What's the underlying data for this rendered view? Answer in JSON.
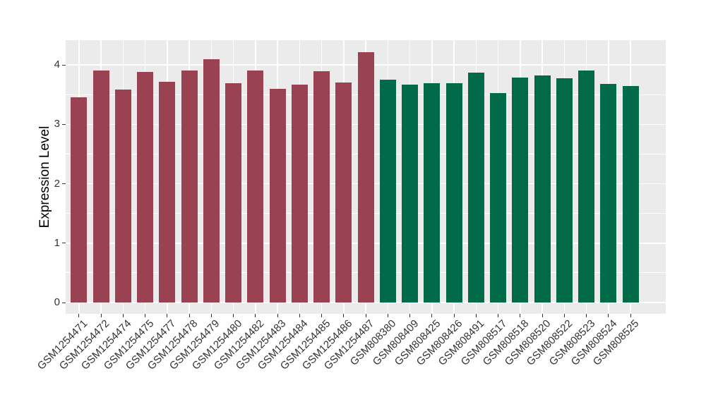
{
  "figure": {
    "background": "#FFFFFF",
    "panel_background": "#EBEBEB",
    "grid_color": "#FFFFFF",
    "tick_color": "#333333",
    "axis_text_color": "#333333",
    "axis_title_color": "#000000"
  },
  "chart_data": {
    "type": "bar",
    "title": "",
    "xlabel": "",
    "ylabel": "Expression Level",
    "ylim": [
      0,
      4.42
    ],
    "yticks": [
      0,
      1,
      2,
      3,
      4
    ],
    "yticks_minor": [
      0.5,
      1.5,
      2.5,
      3.5
    ],
    "grid": "on",
    "legend": "none",
    "group_colors": [
      "#9A4252",
      "#016A49"
    ],
    "bars": [
      {
        "label": "GSM1254471",
        "value": 3.46,
        "group": 0
      },
      {
        "label": "GSM1254472",
        "value": 3.91,
        "group": 0
      },
      {
        "label": "GSM1254474",
        "value": 3.59,
        "group": 0
      },
      {
        "label": "GSM1254475",
        "value": 3.88,
        "group": 0
      },
      {
        "label": "GSM1254477",
        "value": 3.72,
        "group": 0
      },
      {
        "label": "GSM1254478",
        "value": 3.91,
        "group": 0
      },
      {
        "label": "GSM1254479",
        "value": 4.09,
        "group": 0
      },
      {
        "label": "GSM1254480",
        "value": 3.69,
        "group": 0
      },
      {
        "label": "GSM1254482",
        "value": 3.91,
        "group": 0
      },
      {
        "label": "GSM1254483",
        "value": 3.6,
        "group": 0
      },
      {
        "label": "GSM1254484",
        "value": 3.67,
        "group": 0
      },
      {
        "label": "GSM1254485",
        "value": 3.89,
        "group": 0
      },
      {
        "label": "GSM1254486",
        "value": 3.7,
        "group": 0
      },
      {
        "label": "GSM1254487",
        "value": 4.21,
        "group": 0
      },
      {
        "label": "GSM808380",
        "value": 3.75,
        "group": 1
      },
      {
        "label": "GSM808409",
        "value": 3.67,
        "group": 1
      },
      {
        "label": "GSM808425",
        "value": 3.69,
        "group": 1
      },
      {
        "label": "GSM808426",
        "value": 3.69,
        "group": 1
      },
      {
        "label": "GSM808491",
        "value": 3.87,
        "group": 1
      },
      {
        "label": "GSM808517",
        "value": 3.52,
        "group": 1
      },
      {
        "label": "GSM808518",
        "value": 3.79,
        "group": 1
      },
      {
        "label": "GSM808520",
        "value": 3.82,
        "group": 1
      },
      {
        "label": "GSM808522",
        "value": 3.78,
        "group": 1
      },
      {
        "label": "GSM808523",
        "value": 3.91,
        "group": 1
      },
      {
        "label": "GSM808524",
        "value": 3.68,
        "group": 1
      },
      {
        "label": "GSM808525",
        "value": 3.64,
        "group": 1
      }
    ]
  }
}
